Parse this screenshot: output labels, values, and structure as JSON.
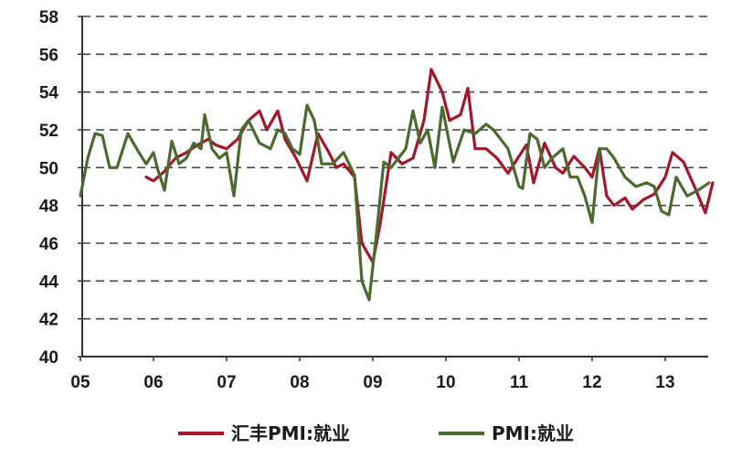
{
  "chart_data": {
    "type": "line",
    "xlabel": "",
    "ylabel": "",
    "ylim": [
      40,
      58
    ],
    "yticks": [
      "40",
      "42",
      "44",
      "46",
      "48",
      "50",
      "52",
      "54",
      "56",
      "58"
    ],
    "xlim": [
      2005.0,
      2013.75
    ],
    "xticks": [
      "05",
      "06",
      "07",
      "08",
      "09",
      "10",
      "11",
      "12",
      "13"
    ],
    "grid": "horizontal dashed",
    "legend_position": "bottom",
    "series": [
      {
        "name": "汇丰PMI:就业",
        "color": "#a0182a",
        "x": [
          2005.9,
          2006.0,
          2006.15,
          2006.3,
          2006.45,
          2006.6,
          2006.75,
          2006.85,
          2007.0,
          2007.15,
          2007.3,
          2007.45,
          2007.55,
          2007.7,
          2007.8,
          2007.95,
          2008.1,
          2008.25,
          2008.4,
          2008.5,
          2008.6,
          2008.75,
          2008.85,
          2009.0,
          2009.1,
          2009.25,
          2009.4,
          2009.55,
          2009.7,
          2009.8,
          2009.95,
          2010.05,
          2010.2,
          2010.3,
          2010.4,
          2010.55,
          2010.7,
          2010.85,
          2010.95,
          2011.1,
          2011.2,
          2011.35,
          2011.5,
          2011.6,
          2011.75,
          2011.9,
          2012.0,
          2012.1,
          2012.2,
          2012.3,
          2012.45,
          2012.55,
          2012.7,
          2012.85,
          2013.0,
          2013.1,
          2013.25,
          2013.4,
          2013.55,
          2013.65
        ],
        "values": [
          49.5,
          49.3,
          49.8,
          50.5,
          50.8,
          51.2,
          51.5,
          51.2,
          51.0,
          51.5,
          52.5,
          53.0,
          52.0,
          53.0,
          51.5,
          50.5,
          49.3,
          51.8,
          50.8,
          50.0,
          50.2,
          49.5,
          46.0,
          45.0,
          47.0,
          50.8,
          50.2,
          50.5,
          52.5,
          55.2,
          54.0,
          52.5,
          52.8,
          54.2,
          51.0,
          51.0,
          50.5,
          49.7,
          50.3,
          51.2,
          49.2,
          51.3,
          50.0,
          49.7,
          50.6,
          50.0,
          49.5,
          51.0,
          48.5,
          48.0,
          48.4,
          47.8,
          48.3,
          48.6,
          49.5,
          50.8,
          50.3,
          49.0,
          47.6,
          49.2
        ]
      },
      {
        "name": "PMI:就业",
        "color": "#4a6a30",
        "x": [
          2005.0,
          2005.1,
          2005.2,
          2005.3,
          2005.4,
          2005.5,
          2005.65,
          2005.8,
          2005.9,
          2006.0,
          2006.05,
          2006.15,
          2006.25,
          2006.35,
          2006.45,
          2006.55,
          2006.65,
          2006.7,
          2006.8,
          2006.9,
          2007.0,
          2007.1,
          2007.2,
          2007.3,
          2007.45,
          2007.6,
          2007.7,
          2007.8,
          2007.9,
          2008.0,
          2008.1,
          2008.2,
          2008.3,
          2008.45,
          2008.6,
          2008.75,
          2008.85,
          2008.95,
          2009.05,
          2009.15,
          2009.25,
          2009.35,
          2009.45,
          2009.55,
          2009.65,
          2009.75,
          2009.85,
          2009.95,
          2010.1,
          2010.25,
          2010.4,
          2010.55,
          2010.65,
          2010.75,
          2010.85,
          2011.0,
          2011.05,
          2011.15,
          2011.25,
          2011.35,
          2011.45,
          2011.6,
          2011.7,
          2011.8,
          2011.9,
          2012.0,
          2012.1,
          2012.2,
          2012.3,
          2012.45,
          2012.6,
          2012.75,
          2012.85,
          2012.95,
          2013.05,
          2013.15,
          2013.3,
          2013.45,
          2013.6
        ],
        "values": [
          48.5,
          50.5,
          51.8,
          51.7,
          50.0,
          50.0,
          51.8,
          50.8,
          50.2,
          50.8,
          50.0,
          48.8,
          51.4,
          50.2,
          50.5,
          51.3,
          51.0,
          52.8,
          51.0,
          50.5,
          50.8,
          48.5,
          52.0,
          52.5,
          51.3,
          51.0,
          52.0,
          51.8,
          51.0,
          50.7,
          53.3,
          52.5,
          50.2,
          50.2,
          50.8,
          49.6,
          44.0,
          43.0,
          46.5,
          50.3,
          50.0,
          50.5,
          51.0,
          53.0,
          51.3,
          52.0,
          50.0,
          53.2,
          50.3,
          52.0,
          51.8,
          52.3,
          52.0,
          51.5,
          51.0,
          49.0,
          48.9,
          51.8,
          51.5,
          50.0,
          50.5,
          51.0,
          49.5,
          49.5,
          48.5,
          47.1,
          51.0,
          51.0,
          50.5,
          49.5,
          49.0,
          49.2,
          49.0,
          47.7,
          47.5,
          49.5,
          48.5,
          48.8,
          49.2
        ]
      }
    ]
  }
}
